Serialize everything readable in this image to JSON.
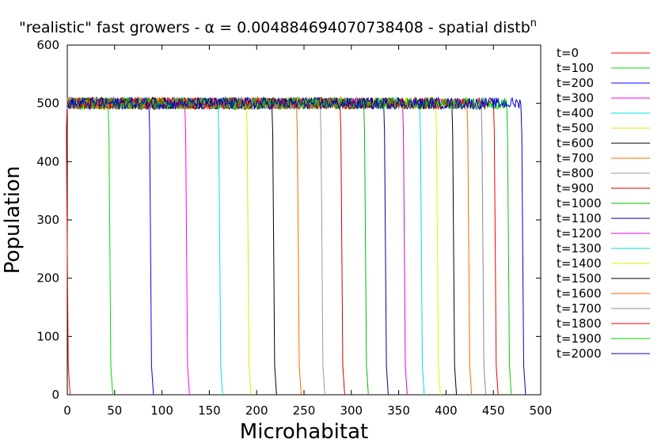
{
  "chart_data": {
    "type": "line",
    "title": "\"realistic\" fast growers - α = 0.004884694070738408 - spatial distb",
    "title_superscript": "n",
    "xlabel": "Microhabitat",
    "ylabel": "Population",
    "xlim": [
      0,
      500
    ],
    "ylim": [
      0,
      600
    ],
    "xticks": [
      "0",
      "50",
      "100",
      "150",
      "200",
      "250",
      "300",
      "350",
      "400",
      "450",
      "500"
    ],
    "yticks": [
      "0",
      "100",
      "200",
      "300",
      "400",
      "500",
      "600"
    ],
    "grid": false,
    "legend_position": "right",
    "plateau": 500,
    "series": [
      {
        "name": "t=0",
        "color": "#ff0000",
        "front": 0
      },
      {
        "name": "t=100",
        "color": "#00dd00",
        "front": 45
      },
      {
        "name": "t=200",
        "color": "#0000ff",
        "front": 88
      },
      {
        "name": "t=300",
        "color": "#ff00ff",
        "front": 126
      },
      {
        "name": "t=400",
        "color": "#00e0e0",
        "front": 161
      },
      {
        "name": "t=500",
        "color": "#e6e600",
        "front": 191
      },
      {
        "name": "t=600",
        "color": "#000000",
        "front": 218
      },
      {
        "name": "t=700",
        "color": "#ff6600",
        "front": 244
      },
      {
        "name": "t=800",
        "color": "#999999",
        "front": 269
      },
      {
        "name": "t=900",
        "color": "#cc0000",
        "front": 290
      },
      {
        "name": "t=1000",
        "color": "#00bb00",
        "front": 315
      },
      {
        "name": "t=1100",
        "color": "#000099",
        "front": 336
      },
      {
        "name": "t=1200",
        "color": "#dd00dd",
        "front": 356
      },
      {
        "name": "t=1300",
        "color": "#00dddd",
        "front": 374
      },
      {
        "name": "t=1400",
        "color": "#eeee00",
        "front": 391
      },
      {
        "name": "t=1500",
        "color": "#000000",
        "front": 408
      },
      {
        "name": "t=1600",
        "color": "#ff6600",
        "front": 424
      },
      {
        "name": "t=1700",
        "color": "#888888",
        "front": 439
      },
      {
        "name": "t=1800",
        "color": "#ee0000",
        "front": 452
      },
      {
        "name": "t=1900",
        "color": "#00cc00",
        "front": 466
      },
      {
        "name": "t=2000",
        "color": "#0000cc",
        "front": 481
      }
    ]
  }
}
